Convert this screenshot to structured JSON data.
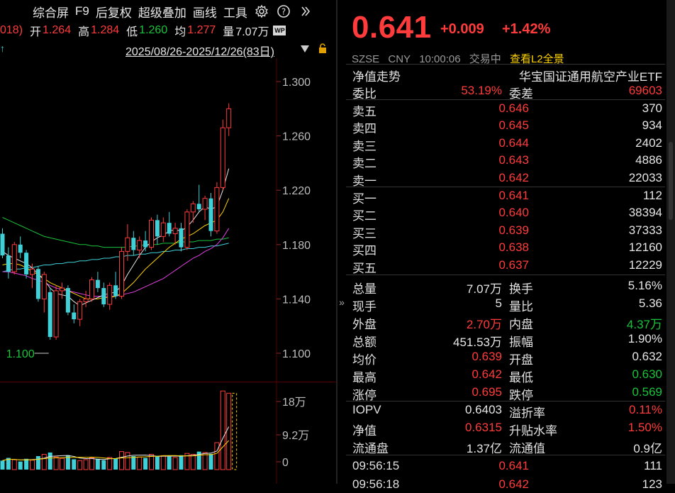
{
  "toolbar": {
    "items": [
      "综合屏",
      "F9",
      "后复权",
      "超级叠加",
      "画线",
      "工具"
    ],
    "settings_icon": "gear-icon",
    "help_icon": "help-icon",
    "more_icon": "double-chevron-right-icon"
  },
  "ohlc": {
    "prefix": "018)",
    "open_label": "开",
    "open": "1.264",
    "high_label": "高",
    "high": "1.284",
    "low_label": "低",
    "low": "1.260",
    "avg_label": "均",
    "avg": "1.277",
    "vol_label": "量",
    "vol": "7.07万"
  },
  "range": {
    "text": "2025/08/26-2025/12/26(83日)",
    "arrow": "▼"
  },
  "main_chart": {
    "y_ticks": [
      "1.300",
      "1.260",
      "1.220",
      "1.180",
      "1.140",
      "1.100"
    ],
    "min_label": "1.100"
  },
  "vol_chart": {
    "y_ticks": [
      "18万",
      "9.2万",
      "0"
    ]
  },
  "quote": {
    "price": "0.641",
    "change": "+0.009",
    "change_pct": "+1.42%",
    "exchange": "SZSE",
    "currency": "CNY",
    "time": "10:00:06",
    "status": "交易中",
    "l2_link": "查看L2全景"
  },
  "title_row": {
    "left": "净值走势",
    "right": "华宝国证通用航空产业ETF"
  },
  "ratio_row": {
    "l1": "委比",
    "v1": "53.19%",
    "l2": "委差",
    "v2": "69603"
  },
  "asks": [
    {
      "label": "卖五",
      "price": "0.646",
      "vol": "370"
    },
    {
      "label": "卖四",
      "price": "0.645",
      "vol": "934"
    },
    {
      "label": "卖三",
      "price": "0.644",
      "vol": "2402"
    },
    {
      "label": "卖二",
      "price": "0.643",
      "vol": "4886"
    },
    {
      "label": "卖一",
      "price": "0.642",
      "vol": "22033"
    }
  ],
  "bids": [
    {
      "label": "买一",
      "price": "0.641",
      "vol": "112"
    },
    {
      "label": "买二",
      "price": "0.640",
      "vol": "38394"
    },
    {
      "label": "买三",
      "price": "0.639",
      "vol": "37333"
    },
    {
      "label": "买四",
      "price": "0.638",
      "vol": "12160"
    },
    {
      "label": "买五",
      "price": "0.637",
      "vol": "12229"
    }
  ],
  "stats": [
    {
      "l1": "总量",
      "v1": "7.07万",
      "c1": "white",
      "l2": "换手",
      "v2": "5.16%",
      "c2": "white"
    },
    {
      "l1": "现手",
      "v1": "5",
      "c1": "white",
      "l2": "量比",
      "v2": "5.36",
      "c2": "white"
    },
    {
      "l1": "外盘",
      "v1": "2.70万",
      "c1": "red",
      "l2": "内盘",
      "v2": "4.37万",
      "c2": "green"
    },
    {
      "l1": "总额",
      "v1": "451.53万",
      "c1": "white",
      "l2": "振幅",
      "v2": "1.90%",
      "c2": "white"
    },
    {
      "l1": "均价",
      "v1": "0.639",
      "c1": "red",
      "l2": "开盘",
      "v2": "0.632",
      "c2": "white"
    },
    {
      "l1": "最高",
      "v1": "0.642",
      "c1": "red",
      "l2": "最低",
      "v2": "0.630",
      "c2": "green"
    },
    {
      "l1": "涨停",
      "v1": "0.695",
      "c1": "red",
      "l2": "跌停",
      "v2": "0.569",
      "c2": "green"
    }
  ],
  "stats2": [
    {
      "l1": "IOPV",
      "v1": "0.6403",
      "c1": "white",
      "l2": "溢折率",
      "v2": "0.11%",
      "c2": "red"
    },
    {
      "l1": "净值",
      "v1": "0.6315",
      "c1": "red",
      "l2": "升贴水率",
      "v2": "1.50%",
      "c2": "red"
    },
    {
      "l1": "流通盘",
      "v1": "1.37亿",
      "c1": "white",
      "l2": "流通值",
      "v2": "0.9亿",
      "c2": "white"
    }
  ],
  "ticks": [
    {
      "time": "09:56:15",
      "price": "0.641",
      "vol": "111"
    },
    {
      "time": "09:56:18",
      "price": "0.642",
      "vol": "123"
    }
  ],
  "colors": {
    "up": "#ff3b3b",
    "down": "#3fd0d8",
    "ma5": "#e6e6e6",
    "ma10": "#ffd400",
    "ma20": "#e040e0",
    "ma30": "#19c43c",
    "ma60": "#3fd0d8"
  },
  "chart_data": {
    "type": "candlestick",
    "y_range": [
      1.1,
      1.3
    ],
    "candles": [
      [
        1.188,
        1.192,
        1.17,
        1.172
      ],
      [
        1.172,
        1.178,
        1.155,
        1.16
      ],
      [
        1.16,
        1.182,
        1.158,
        1.18
      ],
      [
        1.18,
        1.186,
        1.17,
        1.174
      ],
      [
        1.174,
        1.176,
        1.155,
        1.158
      ],
      [
        1.158,
        1.166,
        1.148,
        1.162
      ],
      [
        1.162,
        1.164,
        1.138,
        1.14
      ],
      [
        1.14,
        1.16,
        1.13,
        1.158
      ],
      [
        1.145,
        1.148,
        1.11,
        1.112
      ],
      [
        1.112,
        1.15,
        1.11,
        1.146
      ],
      [
        1.146,
        1.152,
        1.14,
        1.148
      ],
      [
        1.148,
        1.15,
        1.128,
        1.13
      ],
      [
        1.13,
        1.136,
        1.122,
        1.125
      ],
      [
        1.125,
        1.14,
        1.12,
        1.138
      ],
      [
        1.138,
        1.146,
        1.134,
        1.14
      ],
      [
        1.14,
        1.156,
        1.138,
        1.154
      ],
      [
        1.154,
        1.16,
        1.145,
        1.148
      ],
      [
        1.148,
        1.152,
        1.134,
        1.136
      ],
      [
        1.136,
        1.152,
        1.132,
        1.15
      ],
      [
        1.15,
        1.16,
        1.14,
        1.142
      ],
      [
        1.142,
        1.178,
        1.14,
        1.175
      ],
      [
        1.175,
        1.195,
        1.168,
        1.185
      ],
      [
        1.185,
        1.19,
        1.172,
        1.176
      ],
      [
        1.176,
        1.186,
        1.17,
        1.183
      ],
      [
        1.183,
        1.19,
        1.175,
        1.178
      ],
      [
        1.178,
        1.2,
        1.176,
        1.198
      ],
      [
        1.198,
        1.202,
        1.18,
        1.186
      ],
      [
        1.186,
        1.2,
        1.182,
        1.196
      ],
      [
        1.196,
        1.204,
        1.186,
        1.188
      ],
      [
        1.188,
        1.196,
        1.18,
        1.192
      ],
      [
        1.192,
        1.196,
        1.175,
        1.178
      ],
      [
        1.178,
        1.206,
        1.176,
        1.204
      ],
      [
        1.204,
        1.212,
        1.196,
        1.21
      ],
      [
        1.21,
        1.224,
        1.204,
        1.206
      ],
      [
        1.206,
        1.216,
        1.198,
        1.214
      ],
      [
        1.214,
        1.218,
        1.186,
        1.19
      ],
      [
        1.19,
        1.226,
        1.188,
        1.222
      ],
      [
        1.222,
        1.272,
        1.22,
        1.266
      ],
      [
        1.266,
        1.284,
        1.26,
        1.28
      ]
    ],
    "volume_axis_max": 180000,
    "volumes": [
      20000,
      26000,
      22000,
      18000,
      24000,
      21000,
      30000,
      34000,
      38000,
      28000,
      25000,
      32000,
      23000,
      20000,
      22000,
      26000,
      24000,
      21000,
      27000,
      25000,
      40000,
      38000,
      30000,
      28000,
      26000,
      34000,
      30000,
      31000,
      29000,
      27000,
      32000,
      36000,
      34000,
      40000,
      38000,
      35000,
      60000,
      175000,
      170000
    ],
    "ma_lines": {
      "ma5": [
        1.175,
        1.172,
        1.17,
        1.168,
        1.166,
        1.163,
        1.158,
        1.154,
        1.148,
        1.144,
        1.143,
        1.142,
        1.138,
        1.135,
        1.137,
        1.139,
        1.141,
        1.143,
        1.144,
        1.145,
        1.15,
        1.158,
        1.165,
        1.172,
        1.178,
        1.182,
        1.185,
        1.187,
        1.19,
        1.191,
        1.19,
        1.193,
        1.198,
        1.204,
        1.208,
        1.206,
        1.208,
        1.22,
        1.236
      ],
      "ma10": [
        1.165,
        1.166,
        1.166,
        1.165,
        1.163,
        1.16,
        1.158,
        1.155,
        1.152,
        1.15,
        1.148,
        1.146,
        1.144,
        1.142,
        1.14,
        1.14,
        1.14,
        1.141,
        1.141,
        1.142,
        1.144,
        1.148,
        1.152,
        1.157,
        1.162,
        1.166,
        1.17,
        1.174,
        1.178,
        1.181,
        1.184,
        1.186,
        1.188,
        1.191,
        1.194,
        1.196,
        1.198,
        1.204,
        1.214
      ],
      "ma20": [
        1.16,
        1.16,
        1.159,
        1.158,
        1.157,
        1.155,
        1.154,
        1.152,
        1.15,
        1.148,
        1.147,
        1.146,
        1.145,
        1.144,
        1.143,
        1.142,
        1.142,
        1.142,
        1.142,
        1.142,
        1.143,
        1.144,
        1.145,
        1.147,
        1.149,
        1.151,
        1.153,
        1.155,
        1.158,
        1.161,
        1.164,
        1.167,
        1.17,
        1.172,
        1.175,
        1.177,
        1.18,
        1.185,
        1.192
      ],
      "ma30": [
        1.2,
        1.198,
        1.196,
        1.194,
        1.192,
        1.19,
        1.188,
        1.186,
        1.185,
        1.184,
        1.183,
        1.182,
        1.181,
        1.18,
        1.18,
        1.179,
        1.179,
        1.178,
        1.178,
        1.178,
        1.178,
        1.178,
        1.179,
        1.179,
        1.18,
        1.18,
        1.18,
        1.181,
        1.181,
        1.181,
        1.182,
        1.182,
        1.182,
        1.183,
        1.183,
        1.183,
        1.184,
        1.184,
        1.185
      ],
      "ma60": [
        1.16,
        1.161,
        1.162,
        1.162,
        1.163,
        1.163,
        1.164,
        1.165,
        1.165,
        1.166,
        1.166,
        1.167,
        1.167,
        1.168,
        1.168,
        1.169,
        1.169,
        1.17,
        1.17,
        1.171,
        1.171,
        1.172,
        1.172,
        1.173,
        1.173,
        1.174,
        1.174,
        1.175,
        1.175,
        1.176,
        1.176,
        1.177,
        1.177,
        1.178,
        1.178,
        1.179,
        1.179,
        1.18,
        1.181
      ]
    }
  }
}
